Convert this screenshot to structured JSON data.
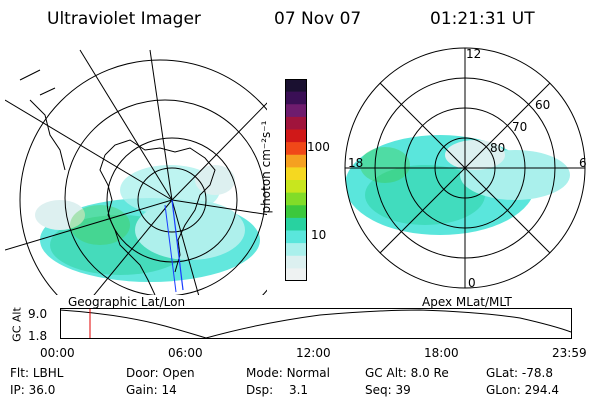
{
  "header": {
    "instrument": "Ultraviolet Imager",
    "date": "07 Nov 07",
    "time": "01:21:31 UT"
  },
  "left_panel": {
    "caption": "Geographic Lat/Lon"
  },
  "right_panel": {
    "caption": "Apex MLat/MLT",
    "mlt_labels": [
      "12",
      "18",
      "6",
      "0"
    ],
    "lat_labels": [
      "60",
      "70",
      "80"
    ]
  },
  "colorbar": {
    "unit_label": "photon cm⁻²s⁻¹",
    "tick_labels": [
      "100",
      "10"
    ],
    "colors": [
      "#1a1030",
      "#3a0f55",
      "#6e1c6e",
      "#a0143c",
      "#d01818",
      "#f04818",
      "#f5a020",
      "#f5d820",
      "#c8e61e",
      "#82dc28",
      "#3cc83c",
      "#28d2a0",
      "#5ae6dc",
      "#aaf0ec",
      "#dcf0f0",
      "#eef2f2"
    ]
  },
  "altitude_plot": {
    "axis_label": "GC Alt",
    "y_ticks": [
      "9.0",
      "1.8"
    ],
    "x_ticks": [
      "00:00",
      "06:00",
      "12:00",
      "18:00",
      "23:59"
    ],
    "marker_color": "#e00000"
  },
  "footer": {
    "row1": [
      {
        "key": "Flt:",
        "value": "LBHL"
      },
      {
        "key": "Door:",
        "value": "Open"
      },
      {
        "key": "Mode:",
        "value": "Normal"
      },
      {
        "key": "GC Alt:",
        "value": "8.0 Re"
      },
      {
        "key": "GLat:",
        "value": "-78.8"
      }
    ],
    "row2": [
      {
        "key": "IP:",
        "value": "36.0"
      },
      {
        "key": "Gain:",
        "value": "14"
      },
      {
        "key": "Dsp:",
        "value": "3.1"
      },
      {
        "key": "Seq:",
        "value": "39"
      },
      {
        "key": "GLon:",
        "value": "294.4"
      }
    ]
  }
}
